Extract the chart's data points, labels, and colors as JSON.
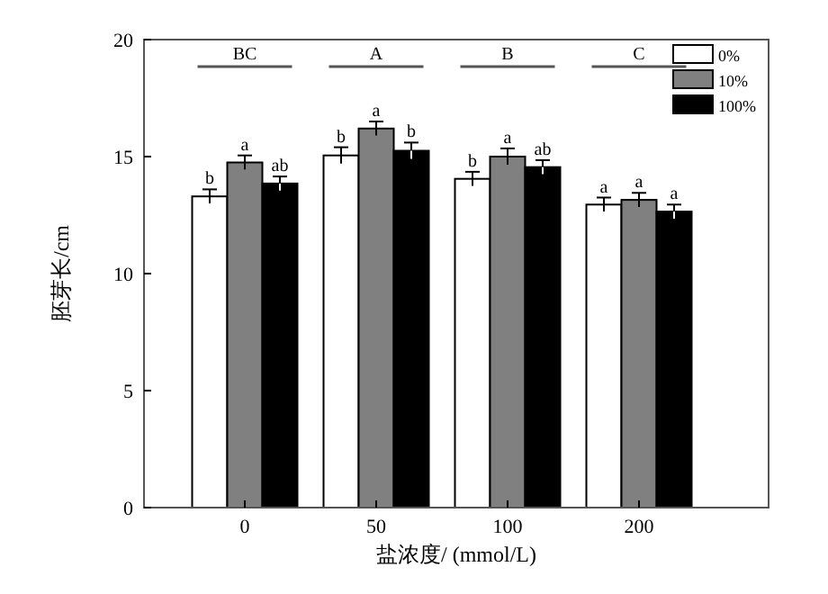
{
  "chart_data": {
    "type": "bar",
    "xlabel": "盐浓度/ (mmol/L)",
    "ylabel": "胚芽长/cm",
    "categories": [
      "0",
      "50",
      "100",
      "200"
    ],
    "series": [
      {
        "name": "0%",
        "color": "#ffffff",
        "values": [
          13.3,
          15.05,
          14.05,
          12.95
        ],
        "errors": [
          0.3,
          0.35,
          0.3,
          0.3
        ],
        "value_labels": [
          "b",
          "b",
          "b",
          "a"
        ]
      },
      {
        "name": "10%",
        "color": "#808080",
        "values": [
          14.75,
          16.2,
          15.0,
          13.15
        ],
        "errors": [
          0.3,
          0.3,
          0.35,
          0.3
        ],
        "value_labels": [
          "a",
          "a",
          "a",
          "a"
        ]
      },
      {
        "name": "100%",
        "color": "#000000",
        "values": [
          13.85,
          15.25,
          14.55,
          12.65
        ],
        "errors": [
          0.3,
          0.35,
          0.3,
          0.3
        ],
        "value_labels": [
          "ab",
          "b",
          "ab",
          "a"
        ]
      }
    ],
    "annotations": [
      "BC",
      "A",
      "B",
      "C"
    ],
    "ylim": [
      0,
      20
    ],
    "yticks": [
      0,
      5,
      10,
      15,
      20
    ],
    "legend": "top right",
    "grid": false
  }
}
